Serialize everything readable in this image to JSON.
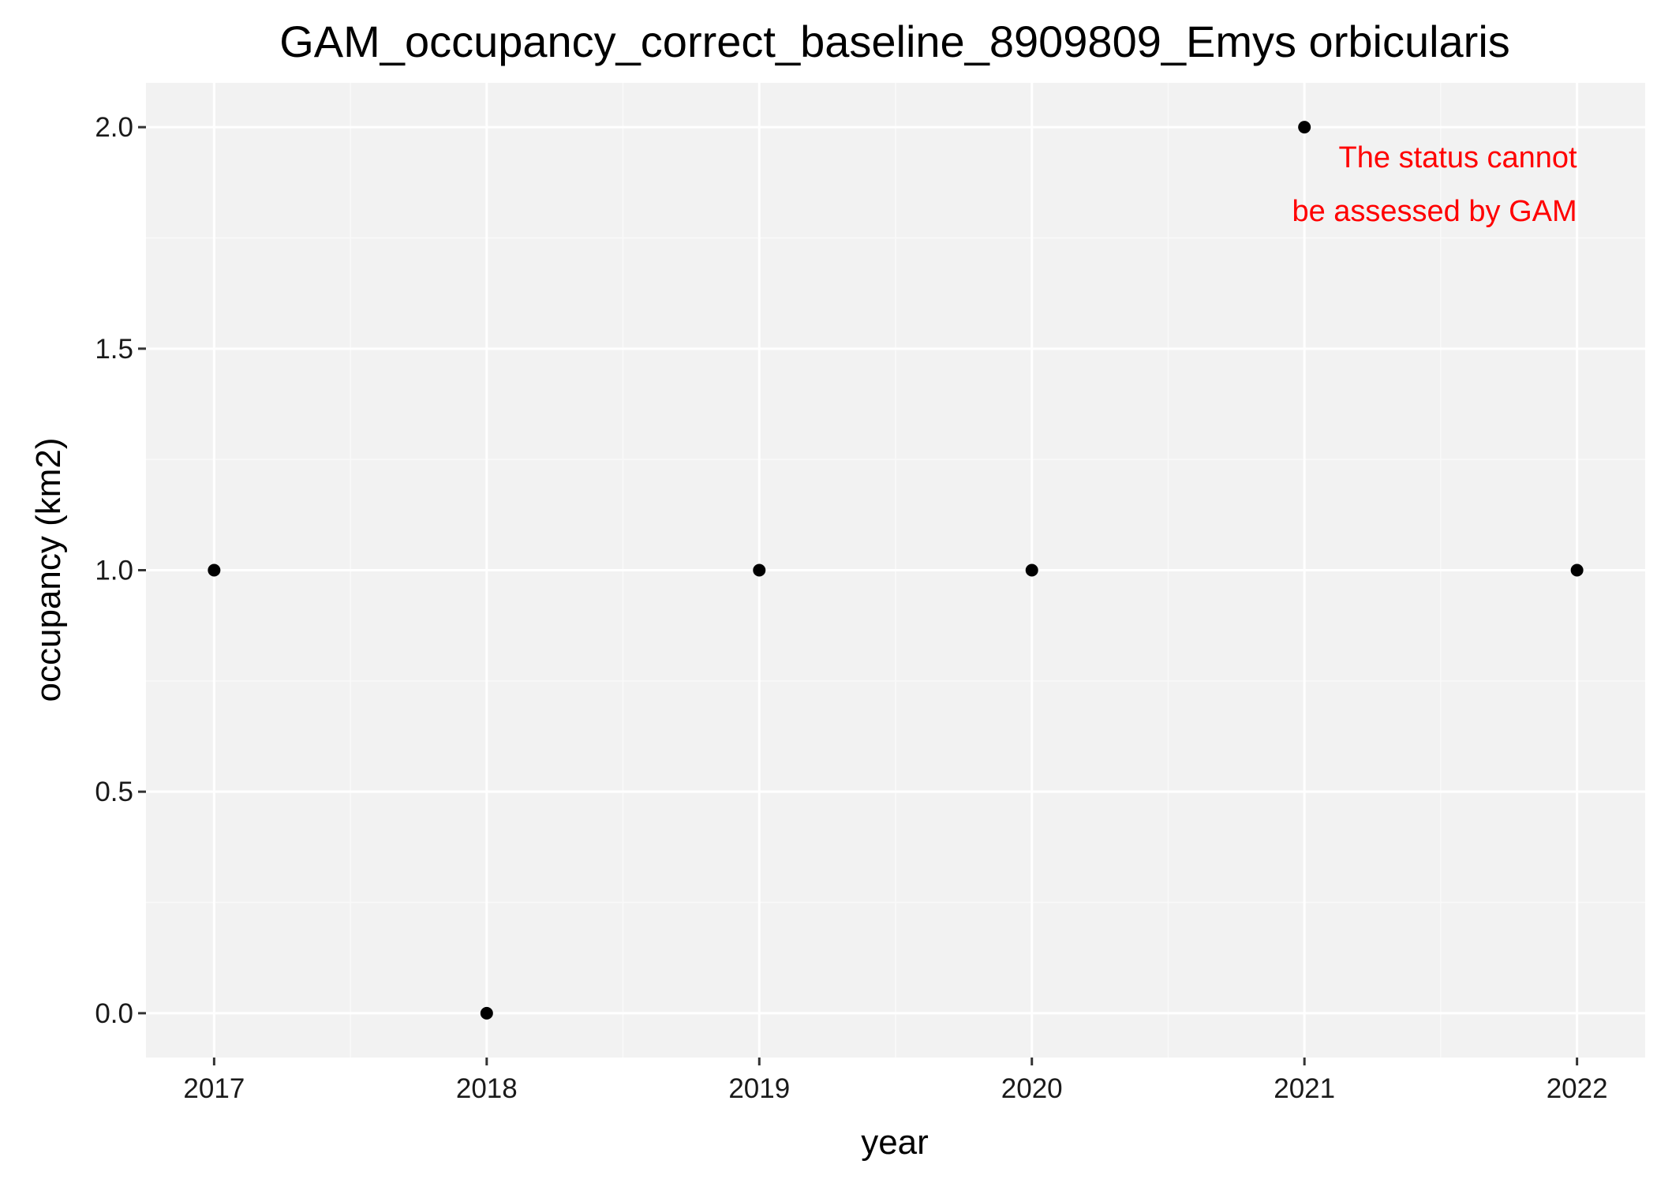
{
  "chart_data": {
    "type": "scatter",
    "title": "GAM_occupancy_correct_baseline_8909809_Emys orbicularis",
    "xlabel": "year",
    "ylabel": "occupancy (km2)",
    "x": [
      2017,
      2018,
      2019,
      2020,
      2021,
      2022
    ],
    "y": [
      1,
      0,
      1,
      1,
      2,
      1
    ],
    "xlim": [
      2016.75,
      2022.25
    ],
    "ylim": [
      -0.1,
      2.1
    ],
    "x_ticks": [
      2017,
      2018,
      2019,
      2020,
      2021,
      2022
    ],
    "x_tick_labels": [
      "2017",
      "2018",
      "2019",
      "2020",
      "2021",
      "2022"
    ],
    "y_ticks": [
      0,
      0.5,
      1,
      1.5,
      2
    ],
    "y_tick_labels": [
      "0.0",
      "0.5",
      "1.0",
      "1.5",
      "2.0"
    ],
    "grid": true,
    "legend": null,
    "annotation": {
      "lines": [
        "The status cannot",
        "be assessed by GAM"
      ],
      "color": "#ff0000",
      "placement": "top-right"
    },
    "colors": {
      "panel_background": "#f2f2f2",
      "grid_major": "#ffffff",
      "grid_minor": "#f9f9f9",
      "point": "#000000",
      "axis_tick": "#333333"
    }
  }
}
